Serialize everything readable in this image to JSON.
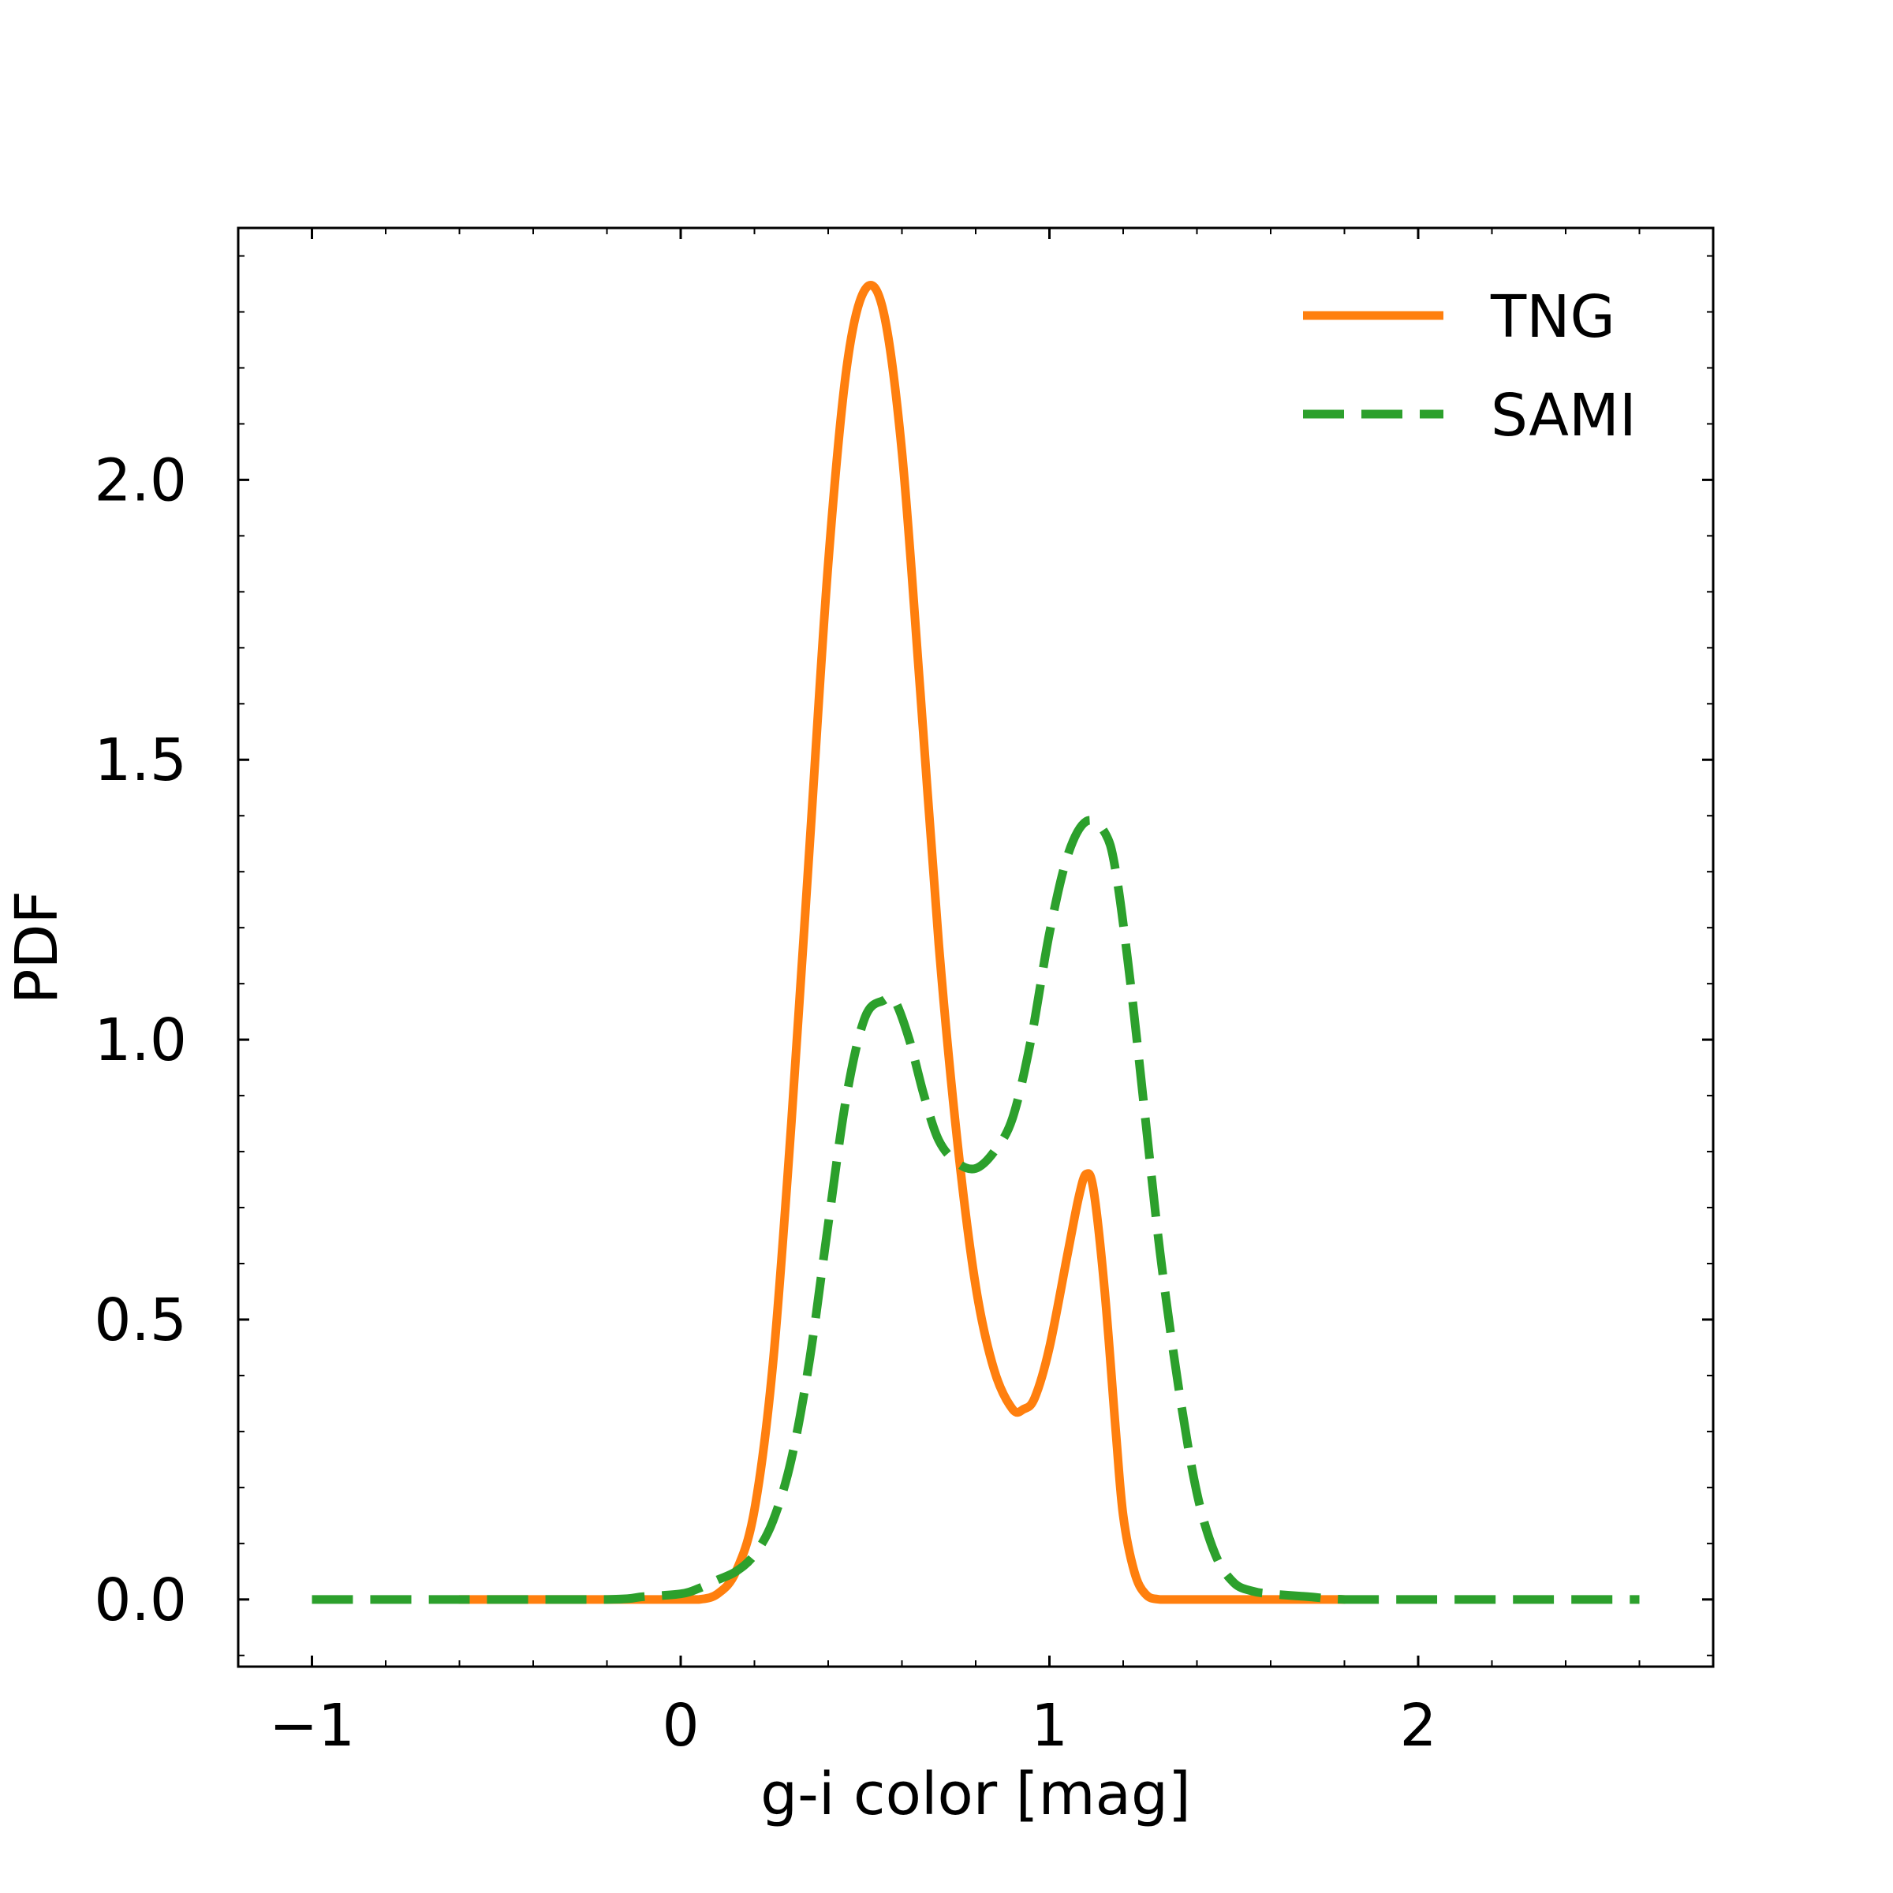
{
  "chart_data": {
    "type": "line",
    "xlabel": "g-i color [mag]",
    "ylabel": "PDF",
    "xlim": [
      -1.2,
      2.8
    ],
    "ylim": [
      -0.12,
      2.45
    ],
    "x_ticks": [
      {
        "value": -1,
        "label": "−1"
      },
      {
        "value": 0,
        "label": "0"
      },
      {
        "value": 1,
        "label": "1"
      },
      {
        "value": 2,
        "label": "2"
      }
    ],
    "y_ticks": [
      {
        "value": 0.0,
        "label": "0.0"
      },
      {
        "value": 0.5,
        "label": "0.5"
      },
      {
        "value": 1.0,
        "label": "1.0"
      },
      {
        "value": 1.5,
        "label": "1.5"
      },
      {
        "value": 2.0,
        "label": "2.0"
      }
    ],
    "grid": false,
    "legend_position": "top-right",
    "series": [
      {
        "name": "TNG",
        "color": "#ff7f0e",
        "style": "solid",
        "x": [
          -0.6,
          -0.4,
          -0.2,
          0.0,
          0.05,
          0.1,
          0.15,
          0.2,
          0.25,
          0.3,
          0.35,
          0.4,
          0.45,
          0.5,
          0.55,
          0.6,
          0.65,
          0.7,
          0.75,
          0.8,
          0.85,
          0.9,
          0.93,
          0.96,
          1.0,
          1.05,
          1.08,
          1.1,
          1.12,
          1.15,
          1.18,
          1.2,
          1.23,
          1.26,
          1.3,
          1.4,
          1.6,
          1.8
        ],
        "y": [
          0.0,
          0.0,
          0.0,
          0.0,
          0.0,
          0.01,
          0.05,
          0.16,
          0.42,
          0.85,
          1.35,
          1.85,
          2.2,
          2.34,
          2.3,
          2.05,
          1.62,
          1.17,
          0.82,
          0.56,
          0.41,
          0.34,
          0.34,
          0.36,
          0.45,
          0.62,
          0.72,
          0.76,
          0.73,
          0.55,
          0.3,
          0.15,
          0.05,
          0.01,
          0.0,
          0.0,
          0.0,
          0.0
        ]
      },
      {
        "name": "SAMI",
        "color": "#2ca02c",
        "style": "dashed",
        "x": [
          -1.0,
          -0.6,
          -0.2,
          -0.1,
          0.0,
          0.05,
          0.1,
          0.15,
          0.2,
          0.25,
          0.3,
          0.35,
          0.4,
          0.45,
          0.5,
          0.55,
          0.58,
          0.62,
          0.66,
          0.7,
          0.75,
          0.8,
          0.85,
          0.9,
          0.95,
          1.0,
          1.05,
          1.1,
          1.15,
          1.18,
          1.22,
          1.26,
          1.3,
          1.35,
          1.4,
          1.45,
          1.5,
          1.55,
          1.6,
          1.7,
          1.8,
          2.0,
          2.3,
          2.6
        ],
        "y": [
          0.0,
          0.0,
          0.0,
          0.005,
          0.01,
          0.02,
          0.035,
          0.05,
          0.08,
          0.14,
          0.25,
          0.43,
          0.67,
          0.9,
          1.04,
          1.07,
          1.07,
          1.0,
          0.9,
          0.82,
          0.78,
          0.77,
          0.8,
          0.86,
          1.0,
          1.19,
          1.33,
          1.39,
          1.37,
          1.3,
          1.1,
          0.86,
          0.62,
          0.38,
          0.19,
          0.08,
          0.03,
          0.015,
          0.01,
          0.005,
          0.0,
          0.0,
          0.0,
          0.0
        ]
      }
    ]
  }
}
